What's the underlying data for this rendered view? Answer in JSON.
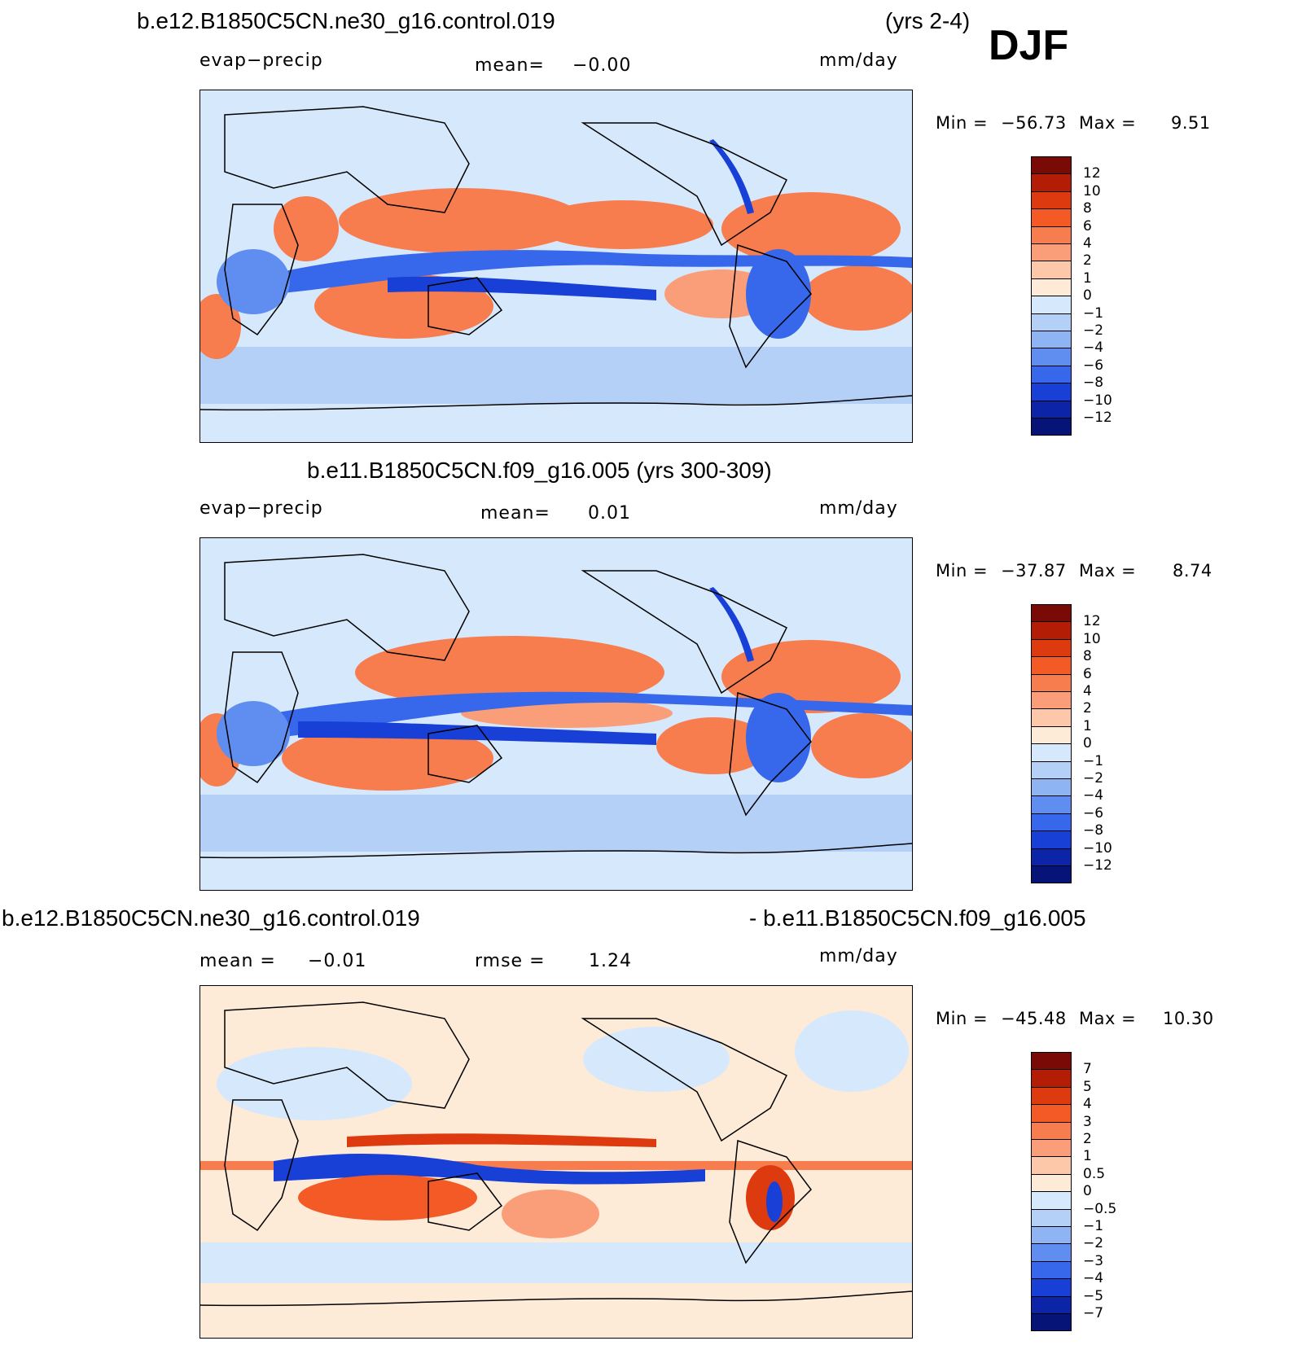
{
  "season": "DJF",
  "panels": [
    {
      "id": "top",
      "title_left": "b.e12.B1850C5CN.ne30_g16.control.019",
      "title_right": "(yrs 2-4)",
      "variable": "evap−precip",
      "stat_label": "mean=",
      "stat_value": "−0.00",
      "units": "mm/day",
      "min_label": "Min  =",
      "min_value": "−56.73",
      "max_label": "Max  =",
      "max_value": "9.51",
      "colorbar": {
        "ticks": [
          "12",
          "10",
          "8",
          "6",
          "4",
          "2",
          "1",
          "0",
          "−1",
          "−2",
          "−4",
          "−6",
          "−8",
          "−10",
          "−12"
        ],
        "colors": [
          "#7a0a06",
          "#b31d06",
          "#dd3b0f",
          "#f35a26",
          "#f77c4e",
          "#fa9e7a",
          "#fdc7aa",
          "#fdebd8",
          "#d6e8fb",
          "#b5d0f7",
          "#8fb4f4",
          "#5f8ef0",
          "#3767ea",
          "#1940d6",
          "#0c25a8",
          "#061478"
        ]
      }
    },
    {
      "id": "middle",
      "title_left": "b.e11.B1850C5CN.f09_g16.005 (yrs 300-309)",
      "variable": "evap−precip",
      "stat_label": "mean=",
      "stat_value": "0.01",
      "units": "mm/day",
      "min_label": "Min  =",
      "min_value": "−37.87",
      "max_label": "Max  =",
      "max_value": "8.74",
      "colorbar": {
        "ticks": [
          "12",
          "10",
          "8",
          "6",
          "4",
          "2",
          "1",
          "0",
          "−1",
          "−2",
          "−4",
          "−6",
          "−8",
          "−10",
          "−12"
        ],
        "colors": [
          "#7a0a06",
          "#b31d06",
          "#dd3b0f",
          "#f35a26",
          "#f77c4e",
          "#fa9e7a",
          "#fdc7aa",
          "#fdebd8",
          "#d6e8fb",
          "#b5d0f7",
          "#8fb4f4",
          "#5f8ef0",
          "#3767ea",
          "#1940d6",
          "#0c25a8",
          "#061478"
        ]
      }
    },
    {
      "id": "bottom",
      "title_left": "b.e12.B1850C5CN.ne30_g16.control.019",
      "title_right": "- b.e11.B1850C5CN.f09_g16.005",
      "stat_label": "mean  =",
      "stat_value": "−0.01",
      "rmse_label": "rmse  =",
      "rmse_value": "1.24",
      "units": "mm/day",
      "min_label": "Min  =",
      "min_value": "−45.48",
      "max_label": "Max  =",
      "max_value": "10.30",
      "colorbar": {
        "ticks": [
          "7",
          "5",
          "4",
          "3",
          "2",
          "1",
          "0.5",
          "0",
          "−0.5",
          "−1",
          "−2",
          "−3",
          "−4",
          "−5",
          "−7"
        ],
        "colors": [
          "#7a0a06",
          "#b31d06",
          "#dd3b0f",
          "#f35a26",
          "#f77c4e",
          "#fa9e7a",
          "#fdc7aa",
          "#fdebd8",
          "#d6e8fb",
          "#b5d0f7",
          "#8fb4f4",
          "#5f8ef0",
          "#3767ea",
          "#1940d6",
          "#0c25a8",
          "#061478"
        ]
      }
    }
  ]
}
